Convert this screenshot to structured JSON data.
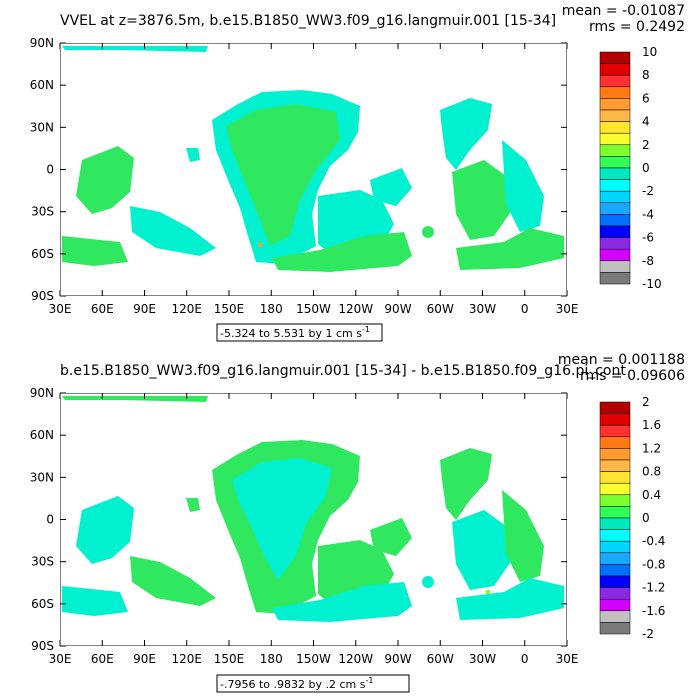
{
  "chart_data": [
    {
      "type": "heatmap",
      "title": "VVEL at z=3876.5m, b.e15.B1850_WW3.f09_g16.langmuir.001 [15-34]",
      "stats": {
        "mean": "mean = -0.01087",
        "rms": "rms = 0.2492"
      },
      "x_ticks": [
        "30E",
        "60E",
        "90E",
        "120E",
        "150E",
        "180",
        "150W",
        "120W",
        "90W",
        "60W",
        "30W",
        "0",
        "30E"
      ],
      "y_ticks": [
        "90N",
        "60N",
        "30N",
        "0",
        "30S",
        "60S",
        "90S"
      ],
      "ylim": [
        -90,
        90
      ],
      "contour_info": "-5.324 to 5.531 by 1 cm s",
      "contour_unit_exp": "-1",
      "colorbar": {
        "colors": [
          "#b00000",
          "#e00000",
          "#ff3030",
          "#ff7a14",
          "#ff9b30",
          "#ffb848",
          "#ffe430",
          "#faff30",
          "#7dff30",
          "#30ff58",
          "#00e8c0",
          "#00ffff",
          "#00d4ff",
          "#1aa8ff",
          "#0070ff",
          "#0000ff",
          "#8a2be2",
          "#d400ff",
          "#c0c0c0",
          "#7a7a7a"
        ],
        "labels": [
          "10",
          "8",
          "6",
          "4",
          "2",
          "0",
          "-2",
          "-4",
          "-6",
          "-8",
          "-10"
        ]
      },
      "values_description_level": "values concentrated near 0 (green / cyan), mean -0.01087, rms 0.2492"
    },
    {
      "type": "heatmap",
      "title": "b.e15.B1850_WW3.f09_g16.langmuir.001 [15-34] - b.e15.B1850.f09_g16.pi_cont",
      "stats": {
        "mean": "mean = 0.001188",
        "rms": "rms = 0.09606"
      },
      "x_ticks": [
        "30E",
        "60E",
        "90E",
        "120E",
        "150E",
        "180",
        "150W",
        "120W",
        "90W",
        "60W",
        "30W",
        "0",
        "30E"
      ],
      "y_ticks": [
        "90N",
        "60N",
        "30N",
        "0",
        "30S",
        "60S",
        "90S"
      ],
      "ylim": [
        -90,
        90
      ],
      "contour_info": "-.7956 to .9832 by .2 cm s",
      "contour_unit_exp": "-1",
      "colorbar": {
        "colors": [
          "#b00000",
          "#e00000",
          "#ff3030",
          "#ff7a14",
          "#ff9b30",
          "#ffb848",
          "#ffe430",
          "#faff30",
          "#7dff30",
          "#30ff58",
          "#00e8c0",
          "#00ffff",
          "#00d4ff",
          "#1aa8ff",
          "#0070ff",
          "#0000ff",
          "#8a2be2",
          "#d400ff",
          "#c0c0c0",
          "#7a7a7a"
        ],
        "labels": [
          "2",
          "1.6",
          "1.2",
          "0.8",
          "0.4",
          "0",
          "-0.4",
          "-0.8",
          "-1.2",
          "-1.6",
          "-2"
        ]
      },
      "values_description_level": "values concentrated near 0 (green / cyan), mean 0.001188, rms 0.09606"
    }
  ],
  "field_colors": {
    "land": "#ffffff",
    "green": "#30e860",
    "cyan": "#00f0d0",
    "light_green": "#7dff30",
    "orange": "#ff9b30"
  }
}
